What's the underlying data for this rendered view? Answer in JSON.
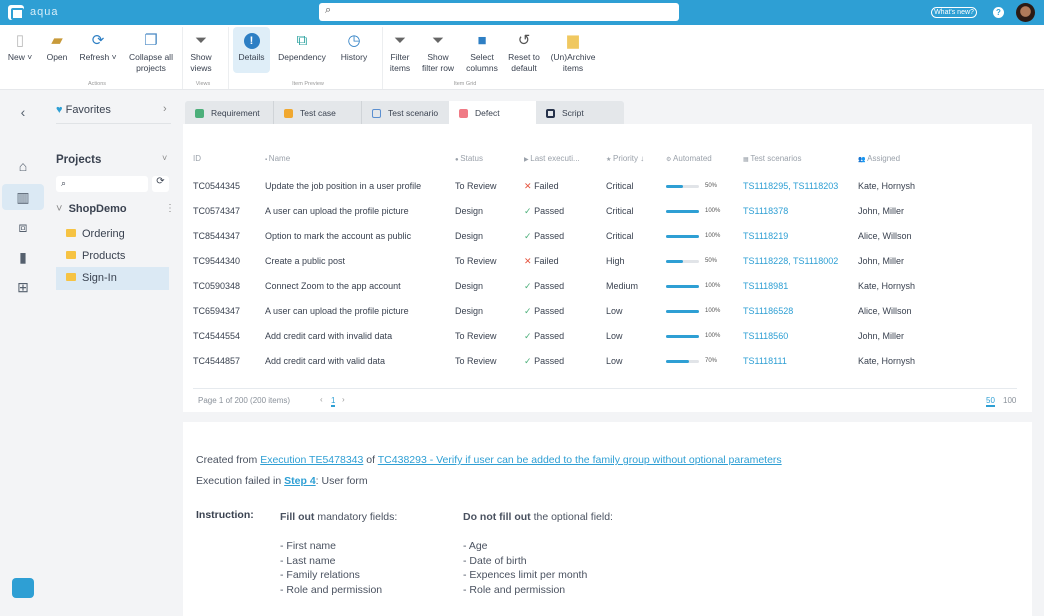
{
  "app": {
    "name": "aqua",
    "search_placeholder": "",
    "whats_new": "What's new?",
    "help": "?"
  },
  "toolbar": {
    "new": "New",
    "open": "Open",
    "refresh": "Refresh",
    "collapse": "Collapse all projects",
    "show_views": "Show views",
    "details": "Details",
    "dependency": "Dependency",
    "history": "History",
    "filter_items": "Filter items",
    "show_filter_row": "Show filter row",
    "select_columns": "Select columns",
    "reset": "Reset to default",
    "archive": "(Un)Archive items",
    "groups": {
      "actions": "Actions",
      "views": "Views",
      "preview": "Item Preview",
      "grid": "Item Grid"
    }
  },
  "sidebar": {
    "favorites": "Favorites",
    "projects": "Projects",
    "project": "ShopDemo",
    "folders": [
      "Ordering",
      "Products",
      "Sign-In"
    ],
    "selected": "Sign-In"
  },
  "tabs": [
    {
      "label": "Requirement",
      "color": "#4caf7a"
    },
    {
      "label": "Test case",
      "color": "#f0a830"
    },
    {
      "label": "Test scenario",
      "color": "#5b8fd0"
    },
    {
      "label": "Defect",
      "color": "#f07a85"
    },
    {
      "label": "Script",
      "color": "#26324a"
    }
  ],
  "active_tab": "Defect",
  "grid": {
    "headers": [
      "ID",
      "Name",
      "Status",
      "Last executi...",
      "Priority ↓",
      "Automated",
      "Test scenarios",
      "Assigned"
    ],
    "rows": [
      {
        "id": "TC0544345",
        "name": "Update the job position in a user profile",
        "status": "To Review",
        "last": "Failed",
        "priority": "Critical",
        "auto": 50,
        "auto_label": "50%",
        "ts": "TS1118295, TS1118203",
        "assigned": "Kate, Hornysh"
      },
      {
        "id": "TC0574347",
        "name": "A user can upload the profile picture",
        "status": "Design",
        "last": "Passed",
        "priority": "Critical",
        "auto": 100,
        "auto_label": "100%",
        "ts": "TS1118378",
        "assigned": "John, Miller"
      },
      {
        "id": "TC8544347",
        "name": "Option to mark the account as public",
        "status": "Design",
        "last": "Passed",
        "priority": "Critical",
        "auto": 100,
        "auto_label": "100%",
        "ts": "TS1118219",
        "assigned": "Alice, Willson"
      },
      {
        "id": "TC9544340",
        "name": "Create a public post",
        "status": "To Review",
        "last": "Failed",
        "priority": "High",
        "auto": 50,
        "auto_label": "50%",
        "ts": "TS1118228, TS1118002",
        "assigned": "John, Miller"
      },
      {
        "id": "TC0590348",
        "name": "Connect Zoom to the app account",
        "status": "Design",
        "last": "Passed",
        "priority": "Medium",
        "auto": 100,
        "auto_label": "100%",
        "ts": "TS1118981",
        "assigned": "Kate, Hornysh"
      },
      {
        "id": "TC6594347",
        "name": "A user can upload the profile picture",
        "status": "Design",
        "last": "Passed",
        "priority": "Low",
        "auto": 100,
        "auto_label": "100%",
        "ts": "TS11186528",
        "assigned": "Alice, Willson"
      },
      {
        "id": "TC4544554",
        "name": "Add credit card with invalid data",
        "status": "To Review",
        "last": "Passed",
        "priority": "Low",
        "auto": 100,
        "auto_label": "100%",
        "ts": "TS1118560",
        "assigned": "John, Miller"
      },
      {
        "id": "TC4544857",
        "name": "Add credit card with valid data",
        "status": "To Review",
        "last": "Passed",
        "priority": "Low",
        "auto": 70,
        "auto_label": "70%",
        "ts": "TS1118111",
        "assigned": "Kate, Hornysh"
      }
    ],
    "footer": {
      "page_info": "Page 1 of 200 (200 items)",
      "page": "1",
      "sizes": [
        "50",
        "100"
      ],
      "active_size": "50"
    }
  },
  "detail": {
    "created_from": "Created from",
    "execution_link": "Execution TE5478343",
    "of": "of",
    "tc_link": "TC438293 - Verify if user can be added to the family group without optional parameters",
    "failed_in": "Execution failed in",
    "step_link": "Step 4",
    "step_suffix": ": User form",
    "instruction": "Instruction:",
    "col1_bold": "Fill out",
    "col1_rest": " mandatory fields:",
    "col1_items": [
      "- First name",
      "- Last name",
      "- Family relations",
      "- Role and permission"
    ],
    "col2_bold": "Do not fill out",
    "col2_rest": " the optional field:",
    "col2_items": [
      "- Age",
      "- Date of birth",
      "- Expences limit per month",
      "- Role and permission"
    ]
  }
}
